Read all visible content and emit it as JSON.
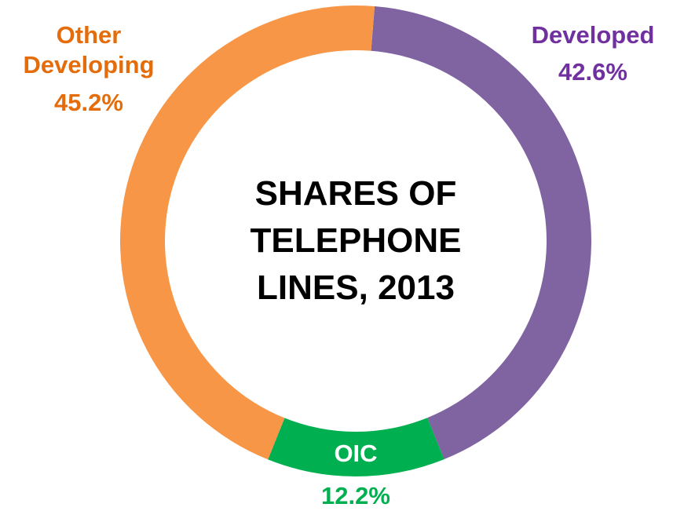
{
  "chart_data": {
    "type": "donut",
    "title": "SHARES OF TELEPHONE LINES, 2013",
    "categories": [
      "Developed",
      "OIC",
      "Other Developing"
    ],
    "values": [
      42.6,
      12.2,
      45.2
    ],
    "value_labels": [
      "42.6%",
      "12.2%",
      "45.2%"
    ],
    "colors": [
      "#8064a2",
      "#00b050",
      "#f79646"
    ],
    "label_colors": [
      "#7030a0",
      "#00b050",
      "#e46c0a"
    ]
  }
}
